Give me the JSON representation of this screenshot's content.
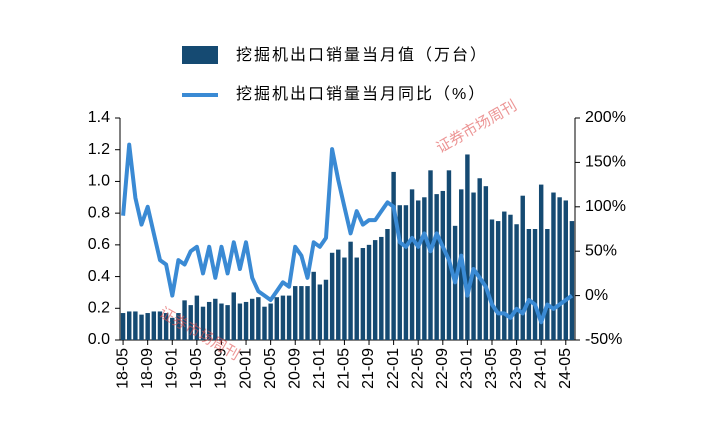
{
  "chart_data": {
    "type": "bar_line",
    "categories": [
      "18-05",
      null,
      null,
      null,
      "18-09",
      null,
      null,
      null,
      "19-01",
      null,
      null,
      null,
      "19-05",
      null,
      null,
      null,
      "19-09",
      null,
      null,
      null,
      "20-01",
      null,
      null,
      null,
      "20-05",
      null,
      null,
      null,
      "20-09",
      null,
      null,
      null,
      "21-01",
      null,
      null,
      null,
      "21-05",
      null,
      null,
      null,
      "21-09",
      null,
      null,
      null,
      "22-01",
      null,
      null,
      null,
      "22-05",
      null,
      null,
      null,
      "22-09",
      null,
      null,
      null,
      "23-01",
      null,
      null,
      null,
      "23-05",
      null,
      null,
      null,
      "23-09",
      null,
      null,
      null,
      "24-01",
      null,
      null,
      null,
      "24-05",
      null
    ],
    "series": [
      {
        "name": "挖掘机出口销量当月值（万台）",
        "color": "#154a72",
        "kind": "bar",
        "values": [
          0.17,
          0.18,
          0.18,
          0.16,
          0.17,
          0.18,
          0.18,
          0.17,
          0.14,
          0.17,
          0.25,
          0.22,
          0.28,
          0.21,
          0.24,
          0.26,
          0.23,
          0.22,
          0.3,
          0.23,
          0.24,
          0.26,
          0.27,
          0.21,
          0.23,
          0.27,
          0.28,
          0.28,
          0.34,
          0.34,
          0.34,
          0.43,
          0.35,
          0.38,
          0.55,
          0.57,
          0.52,
          0.62,
          0.52,
          0.58,
          0.6,
          0.63,
          0.65,
          0.7,
          1.06,
          0.85,
          0.85,
          0.95,
          0.88,
          0.9,
          1.07,
          0.92,
          0.94,
          1.07,
          0.72,
          0.95,
          1.17,
          0.93,
          1.02,
          0.97,
          0.76,
          0.75,
          0.81,
          0.79,
          0.73,
          0.91,
          0.7,
          0.7,
          0.98,
          0.7,
          0.93,
          0.9,
          0.88,
          0.75
        ]
      },
      {
        "name": "挖掘机出口销量当月同比（%）",
        "color": "#3a8ad4",
        "kind": "line",
        "axis": "y2",
        "values": [
          90,
          170,
          110,
          80,
          100,
          70,
          40,
          35,
          0,
          40,
          35,
          50,
          55,
          25,
          55,
          20,
          55,
          25,
          60,
          30,
          60,
          20,
          5,
          0,
          -5,
          5,
          15,
          10,
          55,
          45,
          20,
          60,
          55,
          65,
          165,
          130,
          100,
          70,
          95,
          80,
          85,
          85,
          95,
          105,
          100,
          60,
          55,
          65,
          55,
          70,
          50,
          70,
          55,
          40,
          15,
          45,
          0,
          30,
          20,
          10,
          -10,
          -20,
          -20,
          -25,
          -15,
          -20,
          -5,
          -10,
          -30,
          -10,
          -15,
          -10,
          -5,
          0
        ]
      }
    ],
    "ylim": [
      0,
      1.4
    ],
    "yticks": [
      {
        "value": 0,
        "label": "0.0"
      },
      0.2,
      0.4,
      0.6,
      0.8,
      {
        "value": 1,
        "label": "1.0"
      },
      1.2,
      1.4
    ],
    "y2lim": [
      -50,
      200
    ],
    "y2ticks": [
      {
        "value": -50,
        "label": "-50%"
      },
      {
        "value": 0,
        "label": "0%"
      },
      {
        "value": 50,
        "label": "50%"
      },
      {
        "value": 100,
        "label": "100%"
      },
      {
        "value": 150,
        "label": "150%"
      },
      {
        "value": 200,
        "label": "200%"
      }
    ],
    "watermarks": [
      "证券市场周刊",
      "证券市场周刊"
    ]
  }
}
